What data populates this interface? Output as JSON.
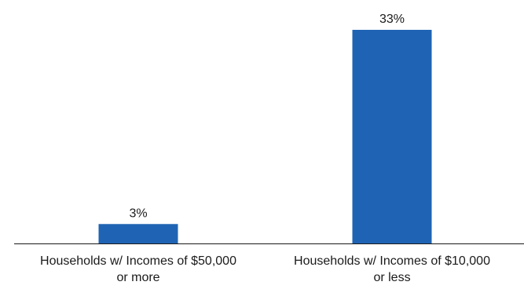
{
  "chart_data": {
    "type": "bar",
    "categories": [
      [
        "Households w/ Incomes of $50,000",
        "or more"
      ],
      [
        "Households w/ Incomes of $10,000",
        "or less"
      ]
    ],
    "values": [
      3,
      33
    ],
    "data_labels": [
      "3%",
      "33%"
    ],
    "ylim": [
      0,
      33
    ],
    "grid": false,
    "legend": "none",
    "colors": {
      "bar": "#1f64b4",
      "axis": "#1a1a1a"
    }
  }
}
